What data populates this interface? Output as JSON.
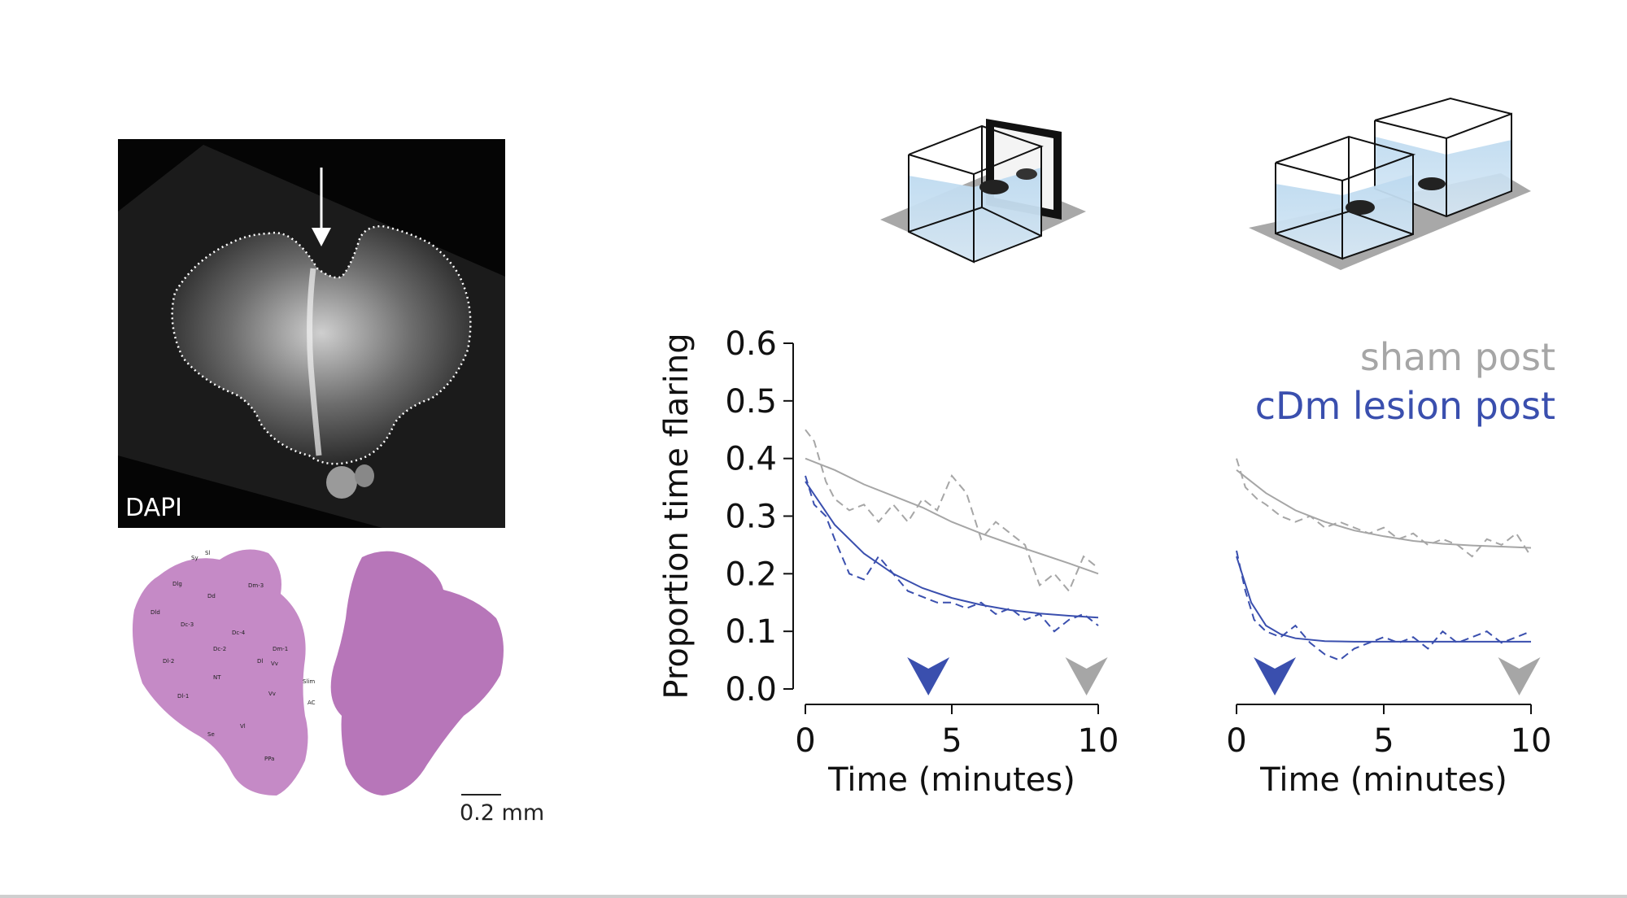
{
  "figure": {
    "dapi_label": "DAPI",
    "scale_bar_label": "0.2 mm",
    "histology_labels": [
      "Sy",
      "Sl",
      "Dlg",
      "Dd",
      "Dm-3",
      "Dld",
      "Dc-3",
      "Dc-4",
      "Dc-2",
      "Dm-1",
      "Dl-2",
      "Dl",
      "Vv",
      "Slim",
      "NT",
      "Vv",
      "Dl-1",
      "AC",
      "Vl",
      "Se",
      "PPa"
    ]
  },
  "chart_data": [
    {
      "type": "line",
      "title": "",
      "xlabel": "Time (minutes)",
      "ylabel": "Proportion time flaring",
      "xlim": [
        0,
        10
      ],
      "ylim": [
        0,
        0.6
      ],
      "xticks": [
        "0",
        "5",
        "10"
      ],
      "yticks": [
        "0.0",
        "0.1",
        "0.2",
        "0.3",
        "0.4",
        "0.5",
        "0.6"
      ],
      "series": [
        {
          "name": "sham post",
          "color": "#a6a6a6",
          "style": "dashed",
          "x": [
            0,
            0.3,
            0.7,
            1.0,
            1.5,
            2.0,
            2.5,
            3.0,
            3.5,
            4.0,
            4.5,
            5.0,
            5.5,
            6.0,
            6.5,
            7.0,
            7.5,
            8.0,
            8.5,
            9.0,
            9.5,
            10.0
          ],
          "y": [
            0.45,
            0.43,
            0.36,
            0.33,
            0.31,
            0.32,
            0.29,
            0.32,
            0.29,
            0.33,
            0.31,
            0.37,
            0.34,
            0.26,
            0.29,
            0.27,
            0.25,
            0.18,
            0.2,
            0.17,
            0.23,
            0.21
          ]
        },
        {
          "name": "sham post fit",
          "color": "#a6a6a6",
          "style": "solid",
          "x": [
            0,
            1,
            2,
            3,
            4,
            5,
            6,
            7,
            8,
            9,
            10
          ],
          "y": [
            0.4,
            0.38,
            0.355,
            0.335,
            0.315,
            0.29,
            0.27,
            0.252,
            0.235,
            0.218,
            0.2
          ]
        },
        {
          "name": "cDm lesion post",
          "color": "#3a4fae",
          "style": "dashed",
          "x": [
            0,
            0.3,
            0.7,
            1.0,
            1.5,
            2.0,
            2.5,
            3.0,
            3.5,
            4.0,
            4.5,
            5.0,
            5.5,
            6.0,
            6.5,
            7.0,
            7.5,
            8.0,
            8.5,
            9.0,
            9.5,
            10.0
          ],
          "y": [
            0.37,
            0.32,
            0.3,
            0.26,
            0.2,
            0.19,
            0.23,
            0.2,
            0.17,
            0.16,
            0.15,
            0.15,
            0.14,
            0.15,
            0.13,
            0.14,
            0.12,
            0.13,
            0.1,
            0.12,
            0.13,
            0.11
          ]
        },
        {
          "name": "cDm lesion post fit",
          "color": "#3a4fae",
          "style": "solid",
          "x": [
            0,
            1,
            2,
            3,
            4,
            5,
            6,
            7,
            8,
            9,
            10
          ],
          "y": [
            0.36,
            0.285,
            0.235,
            0.2,
            0.175,
            0.158,
            0.146,
            0.137,
            0.131,
            0.127,
            0.124
          ]
        }
      ],
      "markers": [
        {
          "name": "cDm lesion post",
          "x": 4.2,
          "color": "#3a4fae"
        },
        {
          "name": "sham post",
          "x": 9.6,
          "color": "#a6a6a6"
        }
      ]
    },
    {
      "type": "line",
      "title": "",
      "xlabel": "Time (minutes)",
      "ylabel": "",
      "xlim": [
        0,
        10
      ],
      "ylim": [
        0,
        0.6
      ],
      "xticks": [
        "0",
        "5",
        "10"
      ],
      "legend": [
        {
          "label": "sham post",
          "color": "#a6a6a6"
        },
        {
          "label": "cDm lesion post",
          "color": "#3a4fae"
        }
      ],
      "series": [
        {
          "name": "sham post",
          "color": "#a6a6a6",
          "style": "dashed",
          "x": [
            0,
            0.3,
            0.7,
            1.0,
            1.5,
            2.0,
            2.5,
            3.0,
            3.5,
            4.0,
            4.5,
            5.0,
            5.5,
            6.0,
            6.5,
            7.0,
            7.5,
            8.0,
            8.5,
            9.0,
            9.5,
            10.0
          ],
          "y": [
            0.4,
            0.35,
            0.33,
            0.32,
            0.3,
            0.29,
            0.3,
            0.28,
            0.29,
            0.28,
            0.27,
            0.28,
            0.26,
            0.27,
            0.25,
            0.26,
            0.25,
            0.23,
            0.26,
            0.25,
            0.27,
            0.23
          ]
        },
        {
          "name": "sham post fit",
          "color": "#a6a6a6",
          "style": "solid",
          "x": [
            0,
            1,
            2,
            3,
            4,
            5,
            6,
            7,
            8,
            9,
            10
          ],
          "y": [
            0.38,
            0.34,
            0.31,
            0.29,
            0.275,
            0.265,
            0.257,
            0.252,
            0.249,
            0.247,
            0.245
          ]
        },
        {
          "name": "cDm lesion post",
          "color": "#3a4fae",
          "style": "dashed",
          "x": [
            0,
            0.3,
            0.6,
            1.0,
            1.5,
            2.0,
            2.5,
            3.0,
            3.5,
            4.0,
            4.5,
            5.0,
            5.5,
            6.0,
            6.5,
            7.0,
            7.5,
            8.0,
            8.5,
            9.0,
            9.5,
            10.0
          ],
          "y": [
            0.24,
            0.17,
            0.12,
            0.1,
            0.09,
            0.11,
            0.08,
            0.06,
            0.05,
            0.07,
            0.08,
            0.09,
            0.08,
            0.09,
            0.07,
            0.1,
            0.08,
            0.09,
            0.1,
            0.08,
            0.09,
            0.1
          ]
        },
        {
          "name": "cDm lesion post fit",
          "color": "#3a4fae",
          "style": "solid",
          "x": [
            0,
            0.5,
            1,
            1.5,
            2,
            3,
            4,
            5,
            6,
            8,
            10
          ],
          "y": [
            0.23,
            0.15,
            0.11,
            0.095,
            0.088,
            0.083,
            0.082,
            0.082,
            0.082,
            0.082,
            0.082
          ]
        }
      ],
      "markers": [
        {
          "name": "cDm lesion post",
          "x": 1.3,
          "color": "#3a4fae"
        },
        {
          "name": "sham post",
          "x": 9.6,
          "color": "#a6a6a6"
        }
      ]
    }
  ]
}
